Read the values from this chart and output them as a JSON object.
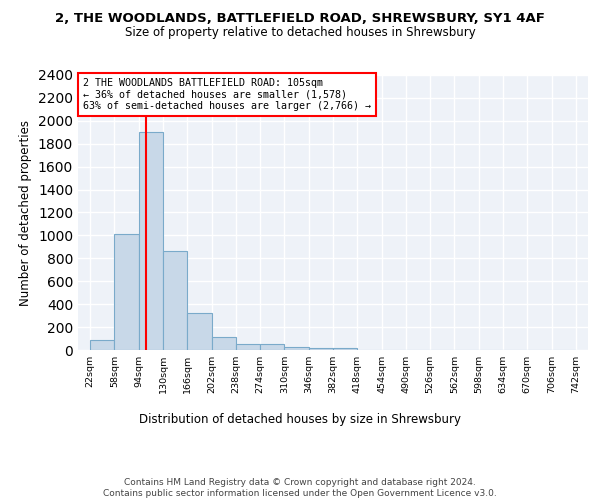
{
  "title": "2, THE WOODLANDS, BATTLEFIELD ROAD, SHREWSBURY, SY1 4AF",
  "subtitle": "Size of property relative to detached houses in Shrewsbury",
  "xlabel": "Distribution of detached houses by size in Shrewsbury",
  "ylabel": "Number of detached properties",
  "bin_edges": [
    22,
    58,
    94,
    130,
    166,
    202,
    238,
    274,
    310,
    346,
    382,
    418,
    454,
    490,
    526,
    562,
    598,
    634,
    670,
    706,
    742
  ],
  "bar_heights": [
    90,
    1010,
    1900,
    860,
    320,
    115,
    55,
    50,
    30,
    20,
    20,
    0,
    0,
    0,
    0,
    0,
    0,
    0,
    0,
    0
  ],
  "bar_color": "#c8d8e8",
  "bar_edgecolor": "#7aaaca",
  "background_color": "#eef2f8",
  "grid_color": "#ffffff",
  "red_line_x": 105,
  "ylim": [
    0,
    2400
  ],
  "yticks": [
    0,
    200,
    400,
    600,
    800,
    1000,
    1200,
    1400,
    1600,
    1800,
    2000,
    2200,
    2400
  ],
  "annotation_text": "2 THE WOODLANDS BATTLEFIELD ROAD: 105sqm\n← 36% of detached houses are smaller (1,578)\n63% of semi-detached houses are larger (2,766) →",
  "footer_text": "Contains HM Land Registry data © Crown copyright and database right 2024.\nContains public sector information licensed under the Open Government Licence v3.0.",
  "tick_labels": [
    "22sqm",
    "58sqm",
    "94sqm",
    "130sqm",
    "166sqm",
    "202sqm",
    "238sqm",
    "274sqm",
    "310sqm",
    "346sqm",
    "382sqm",
    "418sqm",
    "454sqm",
    "490sqm",
    "526sqm",
    "562sqm",
    "598sqm",
    "634sqm",
    "670sqm",
    "706sqm",
    "742sqm"
  ]
}
